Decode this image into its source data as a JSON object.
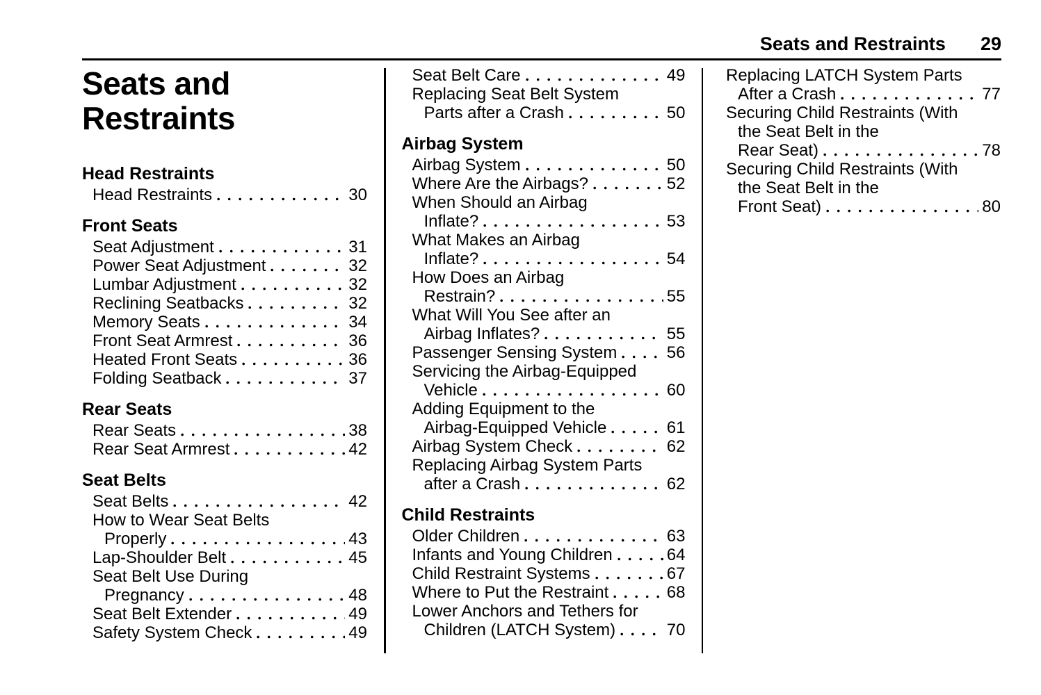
{
  "header": {
    "chapter": "Seats and Restraints",
    "page_number": "29"
  },
  "chapter_title": "Seats and Restraints",
  "columns": [
    {
      "sections": [
        {
          "heading": "Head Restraints",
          "entries": [
            {
              "lines": [
                "Head Restraints"
              ],
              "page": "30"
            }
          ]
        },
        {
          "heading": "Front Seats",
          "entries": [
            {
              "lines": [
                "Seat Adjustment"
              ],
              "page": "31"
            },
            {
              "lines": [
                "Power Seat Adjustment"
              ],
              "page": "32"
            },
            {
              "lines": [
                "Lumbar Adjustment"
              ],
              "page": "32"
            },
            {
              "lines": [
                "Reclining Seatbacks"
              ],
              "page": "32"
            },
            {
              "lines": [
                "Memory Seats"
              ],
              "page": "34"
            },
            {
              "lines": [
                "Front Seat Armrest"
              ],
              "page": "36"
            },
            {
              "lines": [
                "Heated Front Seats"
              ],
              "page": "36"
            },
            {
              "lines": [
                "Folding Seatback"
              ],
              "page": "37"
            }
          ]
        },
        {
          "heading": "Rear Seats",
          "entries": [
            {
              "lines": [
                "Rear Seats"
              ],
              "page": "38"
            },
            {
              "lines": [
                "Rear Seat Armrest"
              ],
              "page": "42"
            }
          ]
        },
        {
          "heading": "Seat Belts",
          "entries": [
            {
              "lines": [
                "Seat Belts"
              ],
              "page": "42"
            },
            {
              "lines": [
                "How to Wear Seat Belts",
                "Properly"
              ],
              "page": "43"
            },
            {
              "lines": [
                "Lap-Shoulder Belt"
              ],
              "page": "45"
            },
            {
              "lines": [
                "Seat Belt Use During",
                "Pregnancy"
              ],
              "page": "48"
            },
            {
              "lines": [
                "Seat Belt Extender"
              ],
              "page": "49"
            },
            {
              "lines": [
                "Safety System Check"
              ],
              "page": "49"
            }
          ]
        }
      ]
    },
    {
      "sections": [
        {
          "heading": null,
          "entries": [
            {
              "lines": [
                "Seat Belt Care"
              ],
              "page": "49"
            },
            {
              "lines": [
                "Replacing Seat Belt System",
                "Parts after a Crash"
              ],
              "page": "50"
            }
          ]
        },
        {
          "heading": "Airbag System",
          "entries": [
            {
              "lines": [
                "Airbag System"
              ],
              "page": "50"
            },
            {
              "lines": [
                "Where Are the Airbags?"
              ],
              "page": "52"
            },
            {
              "lines": [
                "When Should an Airbag",
                "Inflate?"
              ],
              "page": "53"
            },
            {
              "lines": [
                "What Makes an Airbag",
                "Inflate?"
              ],
              "page": "54"
            },
            {
              "lines": [
                "How Does an Airbag",
                "Restrain?"
              ],
              "page": "55"
            },
            {
              "lines": [
                "What Will You See after an",
                "Airbag Inflates?"
              ],
              "page": "55"
            },
            {
              "lines": [
                "Passenger Sensing System"
              ],
              "page": "56"
            },
            {
              "lines": [
                "Servicing the Airbag-Equipped",
                "Vehicle"
              ],
              "page": "60"
            },
            {
              "lines": [
                "Adding Equipment to the",
                "Airbag-Equipped Vehicle"
              ],
              "page": "61"
            },
            {
              "lines": [
                "Airbag System Check"
              ],
              "page": "62"
            },
            {
              "lines": [
                "Replacing Airbag System Parts",
                "after a Crash"
              ],
              "page": "62"
            }
          ]
        },
        {
          "heading": "Child Restraints",
          "entries": [
            {
              "lines": [
                "Older Children"
              ],
              "page": "63"
            },
            {
              "lines": [
                "Infants and Young Children"
              ],
              "page": "64"
            },
            {
              "lines": [
                "Child Restraint Systems"
              ],
              "page": "67"
            },
            {
              "lines": [
                "Where to Put the Restraint"
              ],
              "page": "68"
            },
            {
              "lines": [
                "Lower Anchors and Tethers for",
                "Children (LATCH System)"
              ],
              "page": "70"
            }
          ]
        }
      ]
    },
    {
      "sections": [
        {
          "heading": null,
          "entries": [
            {
              "lines": [
                "Replacing LATCH System Parts",
                "After a Crash"
              ],
              "page": "77"
            },
            {
              "lines": [
                "Securing Child Restraints (With",
                "the Seat Belt in the",
                "Rear Seat)"
              ],
              "page": "78"
            },
            {
              "lines": [
                "Securing Child Restraints (With",
                "the Seat Belt in the",
                "Front Seat)"
              ],
              "page": "80"
            }
          ]
        }
      ]
    }
  ]
}
